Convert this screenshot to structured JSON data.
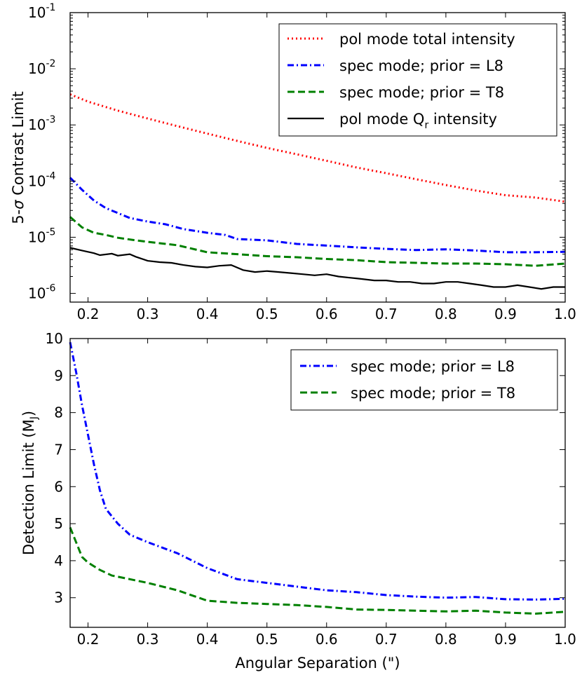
{
  "chart_data": [
    {
      "type": "line",
      "panel": "top",
      "title": "",
      "xlabel": "",
      "ylabel": "5-σ Contrast Limit",
      "yscale": "log",
      "xlim": [
        0.17,
        1.0
      ],
      "ylim": [
        7e-07,
        0.1
      ],
      "xticks": [
        0.2,
        0.3,
        0.4,
        0.5,
        0.6,
        0.7,
        0.8,
        0.9,
        1.0
      ],
      "xtick_labels": [
        "0.2",
        "0.3",
        "0.4",
        "0.5",
        "0.6",
        "0.7",
        "0.8",
        "0.9",
        "1.0"
      ],
      "yticks": [
        {
          "value": 0.1,
          "base": "10",
          "exp": "-1"
        },
        {
          "value": 0.01,
          "base": "10",
          "exp": "-2"
        },
        {
          "value": 0.001,
          "base": "10",
          "exp": "-3"
        },
        {
          "value": 0.0001,
          "base": "10",
          "exp": "-4"
        },
        {
          "value": 1e-05,
          "base": "10",
          "exp": "-5"
        },
        {
          "value": 1e-06,
          "base": "10",
          "exp": "-6"
        }
      ],
      "legend_position": "top-right",
      "series": [
        {
          "name": "pol mode total intensity",
          "color": "#ff0000",
          "style": "dotted",
          "x": [
            0.17,
            0.2,
            0.25,
            0.3,
            0.35,
            0.4,
            0.45,
            0.5,
            0.55,
            0.6,
            0.65,
            0.7,
            0.75,
            0.8,
            0.85,
            0.9,
            0.95,
            1.0
          ],
          "y": [
            0.0035,
            0.0026,
            0.0018,
            0.0013,
            0.00095,
            0.0007,
            0.00052,
            0.00039,
            0.0003,
            0.00023,
            0.000175,
            0.000138,
            0.000108,
            8.5e-05,
            6.8e-05,
            5.6e-05,
            5.1e-05,
            4.3e-05
          ]
        },
        {
          "name": "spec mode; prior = L8",
          "color": "#0000ff",
          "style": "dashdot",
          "x": [
            0.17,
            0.19,
            0.21,
            0.23,
            0.25,
            0.27,
            0.3,
            0.33,
            0.36,
            0.4,
            0.43,
            0.45,
            0.5,
            0.55,
            0.6,
            0.65,
            0.7,
            0.75,
            0.8,
            0.85,
            0.9,
            0.95,
            1.0
          ],
          "y": [
            0.000115,
            7e-05,
            4.5e-05,
            3.3e-05,
            2.7e-05,
            2.2e-05,
            1.9e-05,
            1.7e-05,
            1.4e-05,
            1.2e-05,
            1.1e-05,
            9.3e-06,
            8.8e-06,
            7.6e-06,
            7.1e-06,
            6.6e-06,
            6.2e-06,
            5.9e-06,
            6.1e-06,
            5.8e-06,
            5.4e-06,
            5.4e-06,
            5.5e-06
          ]
        },
        {
          "name": "spec mode; prior = T8",
          "color": "#008000",
          "style": "dashed",
          "x": [
            0.17,
            0.19,
            0.21,
            0.23,
            0.25,
            0.28,
            0.3,
            0.35,
            0.4,
            0.45,
            0.5,
            0.55,
            0.6,
            0.65,
            0.7,
            0.75,
            0.8,
            0.85,
            0.9,
            0.95,
            1.0
          ],
          "y": [
            2.3e-05,
            1.5e-05,
            1.2e-05,
            1.1e-05,
            9.8e-06,
            8.8e-06,
            8.3e-06,
            7.2e-06,
            5.4e-06,
            5e-06,
            4.6e-06,
            4.4e-06,
            4.1e-06,
            3.9e-06,
            3.6e-06,
            3.5e-06,
            3.4e-06,
            3.4e-06,
            3.3e-06,
            3.1e-06,
            3.4e-06
          ]
        },
        {
          "name": "pol mode Q_r intensity",
          "color": "#000000",
          "style": "solid",
          "x": [
            0.17,
            0.19,
            0.21,
            0.22,
            0.24,
            0.25,
            0.27,
            0.28,
            0.3,
            0.32,
            0.34,
            0.36,
            0.38,
            0.4,
            0.42,
            0.44,
            0.46,
            0.48,
            0.5,
            0.52,
            0.54,
            0.56,
            0.58,
            0.6,
            0.62,
            0.64,
            0.66,
            0.68,
            0.7,
            0.72,
            0.74,
            0.76,
            0.78,
            0.8,
            0.82,
            0.84,
            0.86,
            0.88,
            0.9,
            0.92,
            0.94,
            0.96,
            0.98,
            1.0
          ],
          "y": [
            6.5e-06,
            5.8e-06,
            5.2e-06,
            4.8e-06,
            5.1e-06,
            4.7e-06,
            5e-06,
            4.5e-06,
            3.8e-06,
            3.6e-06,
            3.5e-06,
            3.2e-06,
            3e-06,
            2.9e-06,
            3.1e-06,
            3.2e-06,
            2.6e-06,
            2.4e-06,
            2.5e-06,
            2.4e-06,
            2.3e-06,
            2.2e-06,
            2.1e-06,
            2.2e-06,
            2e-06,
            1.9e-06,
            1.8e-06,
            1.7e-06,
            1.7e-06,
            1.6e-06,
            1.6e-06,
            1.5e-06,
            1.5e-06,
            1.6e-06,
            1.6e-06,
            1.5e-06,
            1.4e-06,
            1.3e-06,
            1.3e-06,
            1.4e-06,
            1.3e-06,
            1.2e-06,
            1.3e-06,
            1.3e-06
          ]
        }
      ],
      "legend": [
        {
          "label": "pol mode total intensity"
        },
        {
          "label": "spec mode; prior = L8"
        },
        {
          "label": "spec mode; prior = T8"
        },
        {
          "label_main": "pol mode Q",
          "label_sub": "r",
          "label_rest": " intensity"
        }
      ]
    },
    {
      "type": "line",
      "panel": "bottom",
      "title": "",
      "xlabel": "Angular Separation (\")",
      "ylabel_main": "Detection Limit (M",
      "ylabel_sub": "J",
      "ylabel_close": ")",
      "yscale": "linear",
      "xlim": [
        0.17,
        1.0
      ],
      "ylim": [
        2.2,
        10.0
      ],
      "xticks": [
        0.2,
        0.3,
        0.4,
        0.5,
        0.6,
        0.7,
        0.8,
        0.9,
        1.0
      ],
      "xtick_labels": [
        "0.2",
        "0.3",
        "0.4",
        "0.5",
        "0.6",
        "0.7",
        "0.8",
        "0.9",
        "1.0"
      ],
      "yticks": [
        3,
        4,
        5,
        6,
        7,
        8,
        9,
        10
      ],
      "ytick_labels": [
        "3",
        "4",
        "5",
        "6",
        "7",
        "8",
        "9",
        "10"
      ],
      "legend_position": "top-right",
      "series": [
        {
          "name": "spec mode; prior = L8",
          "color": "#0000ff",
          "style": "dashdot",
          "x": [
            0.17,
            0.18,
            0.19,
            0.2,
            0.21,
            0.22,
            0.23,
            0.25,
            0.27,
            0.3,
            0.35,
            0.4,
            0.45,
            0.5,
            0.55,
            0.6,
            0.65,
            0.7,
            0.75,
            0.8,
            0.85,
            0.9,
            0.95,
            1.0
          ],
          "y": [
            9.9,
            9.1,
            8.2,
            7.4,
            6.6,
            5.9,
            5.4,
            5.0,
            4.7,
            4.5,
            4.2,
            3.8,
            3.5,
            3.4,
            3.3,
            3.2,
            3.15,
            3.07,
            3.03,
            3.0,
            3.02,
            2.96,
            2.95,
            2.97
          ]
        },
        {
          "name": "spec mode; prior = T8",
          "color": "#008000",
          "style": "dashed",
          "x": [
            0.17,
            0.18,
            0.19,
            0.2,
            0.22,
            0.24,
            0.27,
            0.3,
            0.35,
            0.4,
            0.45,
            0.5,
            0.55,
            0.6,
            0.65,
            0.7,
            0.75,
            0.8,
            0.85,
            0.9,
            0.95,
            1.0
          ],
          "y": [
            4.9,
            4.5,
            4.1,
            3.95,
            3.75,
            3.6,
            3.5,
            3.4,
            3.2,
            2.92,
            2.86,
            2.83,
            2.8,
            2.75,
            2.68,
            2.67,
            2.65,
            2.63,
            2.65,
            2.6,
            2.57,
            2.62
          ]
        }
      ],
      "legend": [
        {
          "label": "spec mode; prior = L8"
        },
        {
          "label": "spec mode; prior = T8"
        }
      ]
    }
  ]
}
